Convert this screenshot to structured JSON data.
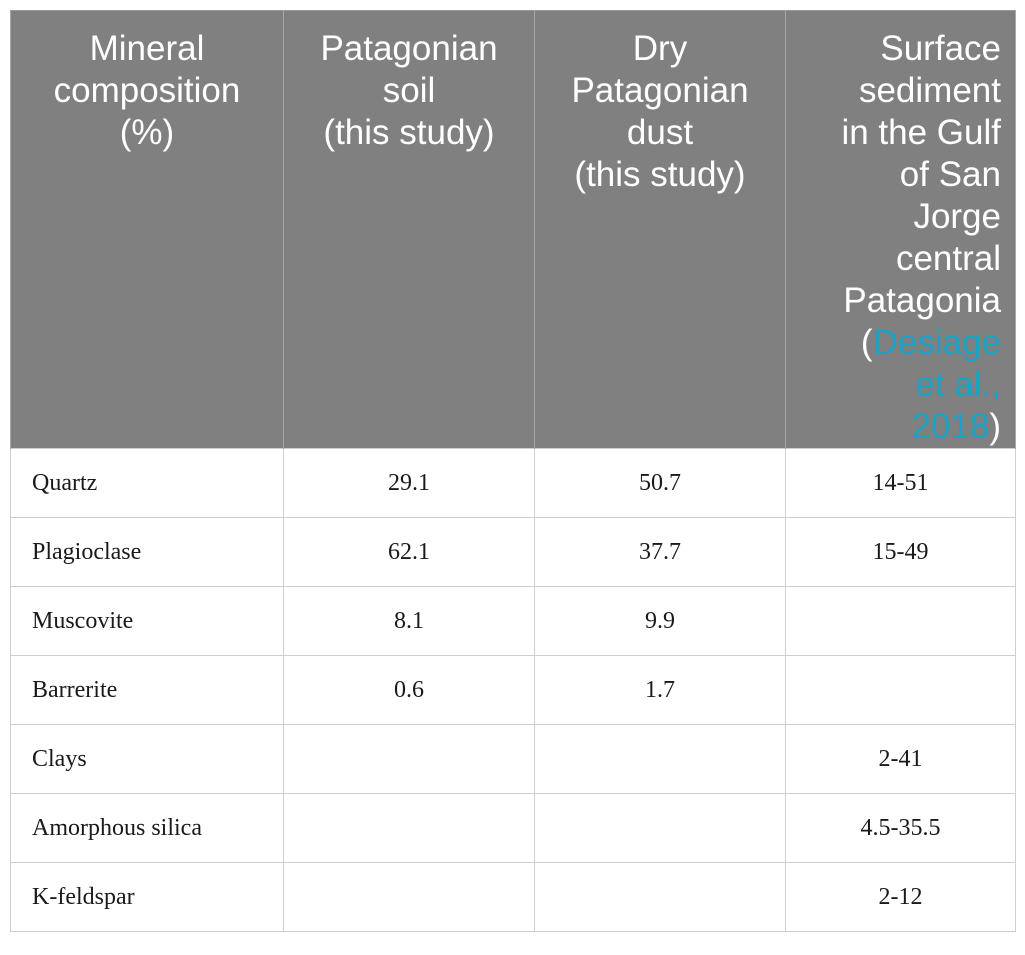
{
  "table": {
    "headers": [
      {
        "lines": [
          "Mineral",
          "composition",
          "(%)"
        ]
      },
      {
        "lines": [
          "Patagonian",
          "soil",
          "(this study)"
        ]
      },
      {
        "lines": [
          "Dry",
          "Patagonian",
          "dust",
          "(this study)"
        ]
      },
      {
        "lines": [
          "Surface",
          "sediment",
          "in the Gulf",
          "of San",
          "Jorge",
          "central",
          "Patagonia"
        ],
        "citation": {
          "open": "(",
          "line1": "Desiage",
          "line2": "et al.,",
          "line3": "2018",
          "close": ")"
        }
      }
    ],
    "rows": [
      {
        "mineral": "Quartz",
        "soil": "29.1",
        "dust": "50.7",
        "sediment": "14-51"
      },
      {
        "mineral": "Plagioclase",
        "soil": "62.1",
        "dust": "37.7",
        "sediment": "15-49"
      },
      {
        "mineral": "Muscovite",
        "soil": "8.1",
        "dust": "9.9",
        "sediment": ""
      },
      {
        "mineral": "Barrerite",
        "soil": "0.6",
        "dust": "1.7",
        "sediment": ""
      },
      {
        "mineral": "Clays",
        "soil": "",
        "dust": "",
        "sediment": "2-41"
      },
      {
        "mineral": "Amorphous silica",
        "soil": "",
        "dust": "",
        "sediment": "4.5-35.5"
      },
      {
        "mineral": "K-feldspar",
        "soil": "",
        "dust": "",
        "sediment": "2-12"
      }
    ]
  },
  "colors": {
    "header_bg": "#808080",
    "header_text": "#ffffff",
    "citation_link": "#1aa3c4",
    "grid": "#cfcfcf"
  }
}
